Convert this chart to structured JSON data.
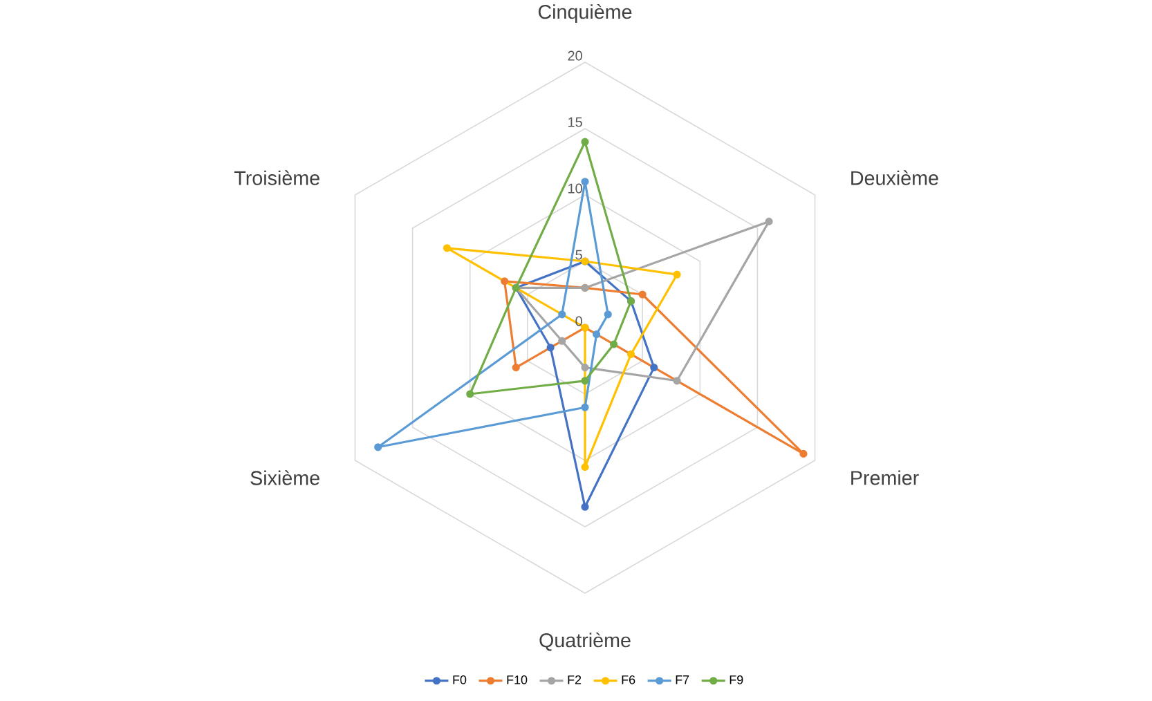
{
  "chart_data": {
    "type": "radar",
    "categories": [
      "Cinquième",
      "Deuxième",
      "Premier",
      "Quatrième",
      "Sixième",
      "Troisième"
    ],
    "series": [
      {
        "name": "F0",
        "color": "#4472c4",
        "values": [
          5,
          4,
          6,
          13.5,
          3,
          6
        ]
      },
      {
        "name": "F10",
        "color": "#ed7d31",
        "values": [
          3,
          5,
          19,
          0,
          6,
          7
        ]
      },
      {
        "name": "F2",
        "color": "#a5a5a5",
        "values": [
          3,
          16,
          8,
          3,
          2,
          6
        ]
      },
      {
        "name": "F6",
        "color": "#ffc000",
        "values": [
          5,
          8,
          4,
          10.5,
          0,
          12
        ]
      },
      {
        "name": "F7",
        "color": "#5b9bd5",
        "values": [
          11,
          2,
          1,
          6,
          18,
          2
        ]
      },
      {
        "name": "F9",
        "color": "#70ad47",
        "values": [
          14,
          4,
          2.5,
          4,
          10,
          6
        ]
      }
    ],
    "ylim": [
      0,
      20
    ],
    "yticks": [
      0,
      5,
      10,
      15,
      20
    ],
    "grid": true,
    "legend": "bottom",
    "marker": "circle"
  }
}
